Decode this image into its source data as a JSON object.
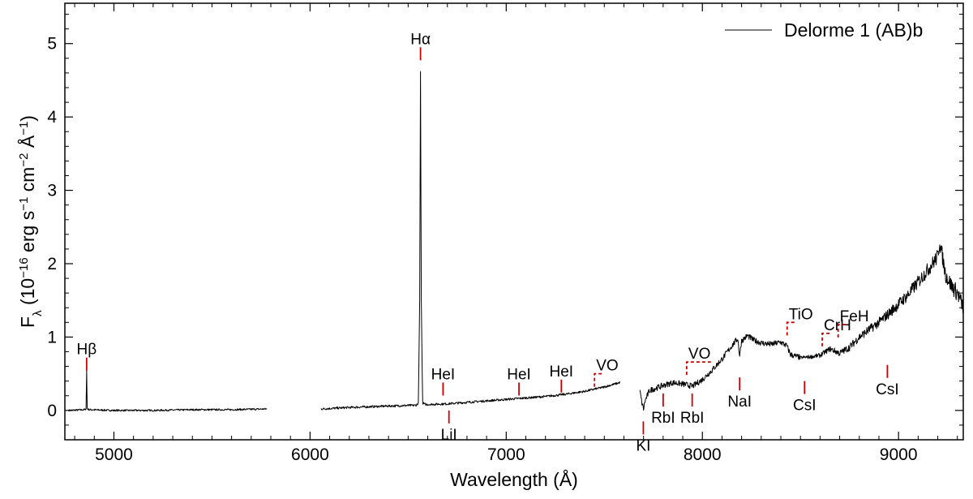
{
  "chart_data": {
    "type": "line",
    "xlabel": "Wavelength (Å)",
    "ylabel": {
      "base": "F",
      "sub": "λ",
      "text1": " (10",
      "exp1": "−16",
      "text2": " erg s",
      "exp2": "−1",
      "text3": " cm",
      "exp3": "−2",
      "text4": " Å",
      "exp4": "−1",
      "text5": ")"
    },
    "xlim": [
      4750,
      9330
    ],
    "ylim": [
      -0.4,
      5.55
    ],
    "x_major_ticks": [
      5000,
      6000,
      7000,
      8000,
      9000
    ],
    "x_tick_labels": [
      "5000",
      "6000",
      "7000",
      "8000",
      "9000"
    ],
    "y_major_ticks": [
      0,
      1,
      2,
      3,
      4,
      5
    ],
    "y_tick_labels": [
      "0",
      "1",
      "2",
      "3",
      "4",
      "5"
    ],
    "legend": {
      "placement": "top-right",
      "label": "Delorme 1 (AB)b",
      "color": "#000000"
    },
    "line_color": "#000000",
    "marker_color": "#cc0000",
    "series": [
      {
        "name": "Delorme 1 (AB)b",
        "segments": [
          {
            "x_range": [
              4770,
              5780
            ],
            "points": [
              [
                4770,
                0.0
              ],
              [
                4850,
                0.01
              ],
              [
                4858,
                0.02
              ],
              [
                4861,
                0.55
              ],
              [
                4864,
                0.02
              ],
              [
                4875,
                0.01
              ],
              [
                5000,
                0.0
              ],
              [
                5200,
                0.0
              ],
              [
                5400,
                0.01
              ],
              [
                5600,
                0.01
              ],
              [
                5780,
                0.02
              ]
            ]
          },
          {
            "x_range": [
              6055,
              7580
            ],
            "points": [
              [
                6055,
                0.02
              ],
              [
                6200,
                0.04
              ],
              [
                6400,
                0.06
              ],
              [
                6540,
                0.07
              ],
              [
                6552,
                0.1
              ],
              [
                6559,
                1.5
              ],
              [
                6563,
                4.62
              ],
              [
                6567,
                1.5
              ],
              [
                6574,
                0.1
              ],
              [
                6590,
                0.08
              ],
              [
                6700,
                0.09
              ],
              [
                6800,
                0.11
              ],
              [
                6900,
                0.13
              ],
              [
                7000,
                0.15
              ],
              [
                7100,
                0.17
              ],
              [
                7200,
                0.19
              ],
              [
                7300,
                0.22
              ],
              [
                7400,
                0.26
              ],
              [
                7500,
                0.32
              ],
              [
                7580,
                0.38
              ]
            ]
          },
          {
            "x_range": [
              7680,
              9330
            ],
            "points": [
              [
                7680,
                0.28
              ],
              [
                7692,
                0.1
              ],
              [
                7700,
                0.02
              ],
              [
                7708,
                0.13
              ],
              [
                7730,
                0.27
              ],
              [
                7800,
                0.34
              ],
              [
                7850,
                0.38
              ],
              [
                7900,
                0.36
              ],
              [
                7950,
                0.33
              ],
              [
                8000,
                0.42
              ],
              [
                8050,
                0.55
              ],
              [
                8100,
                0.7
              ],
              [
                8150,
                0.88
              ],
              [
                8180,
                0.98
              ],
              [
                8190,
                0.75
              ],
              [
                8200,
                0.95
              ],
              [
                8230,
                1.02
              ],
              [
                8260,
                0.96
              ],
              [
                8300,
                0.92
              ],
              [
                8350,
                0.9
              ],
              [
                8400,
                0.93
              ],
              [
                8430,
                0.88
              ],
              [
                8450,
                0.76
              ],
              [
                8500,
                0.72
              ],
              [
                8550,
                0.73
              ],
              [
                8600,
                0.75
              ],
              [
                8650,
                0.84
              ],
              [
                8700,
                0.78
              ],
              [
                8750,
                0.86
              ],
              [
                8800,
                1.0
              ],
              [
                8850,
                1.1
              ],
              [
                8900,
                1.2
              ],
              [
                8950,
                1.32
              ],
              [
                9000,
                1.45
              ],
              [
                9050,
                1.58
              ],
              [
                9100,
                1.75
              ],
              [
                9150,
                1.92
              ],
              [
                9200,
                2.1
              ],
              [
                9210,
                2.3
              ],
              [
                9240,
                1.85
              ],
              [
                9270,
                1.7
              ],
              [
                9300,
                1.6
              ],
              [
                9330,
                1.4
              ]
            ]
          }
        ]
      }
    ],
    "annotations": [
      {
        "label": "Hβ",
        "x": 4861,
        "y": 0.72,
        "tick": "below-label"
      },
      {
        "label": "Hα",
        "x": 6563,
        "y": 4.95,
        "tick": "below-label"
      },
      {
        "label": "HeI",
        "x": 6678,
        "y": 0.38,
        "tick": "below-label"
      },
      {
        "label": "LiI",
        "x": 6708,
        "y": 0.0,
        "tick": "above-label"
      },
      {
        "label": "HeI",
        "x": 7065,
        "y": 0.38,
        "tick": "below-label"
      },
      {
        "label": "HeI",
        "x": 7281,
        "y": 0.42,
        "tick": "below-label"
      },
      {
        "label": "VO",
        "x": 7450,
        "y": 0.5,
        "tick": "bracket",
        "x2": 7460
      },
      {
        "label": "KI",
        "x": 7699,
        "y": -0.15,
        "tick": "above-label"
      },
      {
        "label": "RbI",
        "x": 7800,
        "y": 0.23,
        "tick": "above-label"
      },
      {
        "label": "RbI",
        "x": 7948,
        "y": 0.23,
        "tick": "above-label"
      },
      {
        "label": "VO",
        "x": 7920,
        "y": 0.66,
        "tick": "bracket",
        "x2": 8010
      },
      {
        "label": "NaI",
        "x": 8190,
        "y": 0.45,
        "tick": "above-label"
      },
      {
        "label": "TiO",
        "x": 8432,
        "y": 1.2,
        "tick": "bracket",
        "x2": 8442
      },
      {
        "label": "CsI",
        "x": 8521,
        "y": 0.4,
        "tick": "above-label"
      },
      {
        "label": "CrH",
        "x": 8611,
        "y": 1.05,
        "tick": "bracket",
        "x2": 8620
      },
      {
        "label": "FeH",
        "x": 8692,
        "y": 1.17,
        "tick": "bracket",
        "x2": 8700
      },
      {
        "label": "CsI",
        "x": 8943,
        "y": 0.62,
        "tick": "above-label"
      }
    ]
  }
}
